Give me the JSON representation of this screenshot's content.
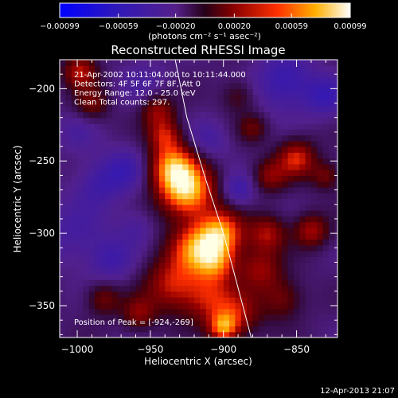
{
  "chart_data": {
    "type": "heatmap",
    "title": "Reconstructed RHESSI Image",
    "xlabel": "Heliocentric X (arcsec)",
    "ylabel": "Heliocentric Y (arcsec)",
    "xlim": [
      -1012,
      -822
    ],
    "ylim": [
      -372,
      -180
    ],
    "x_ticks": [
      -1000,
      -950,
      -900,
      -850
    ],
    "y_ticks": [
      -200,
      -250,
      -300,
      -350
    ],
    "colorbar": {
      "min": -0.00099,
      "max": 0.00099,
      "tick_values": [
        -0.00099,
        -0.00059,
        -0.0002,
        0.0002,
        0.00059,
        0.00099
      ],
      "tick_labels": [
        "-0.00099",
        "-0.00059",
        "-0.00020",
        "0.00020",
        "0.00059",
        "0.00099"
      ],
      "unit_label": "(photons cm⁻² s⁻¹ asec⁻²)"
    },
    "annotations": [
      "21-Apr-2002 10:11:04.000 to 10:11:44.000",
      "Detectors: 4F 5F 6F 7F 8F, Att 0",
      "Energy Range: 12.0 - 25.0 keV",
      "Clean     Total counts: 297."
    ],
    "peak_text": "Position of Peak = [-924,-269]",
    "peak_position": [
      -924,
      -269
    ],
    "limb_curve": [
      [
        -933,
        -180
      ],
      [
        -925,
        -220
      ],
      [
        -913,
        -260
      ],
      [
        -900,
        -300
      ],
      [
        -892,
        -330
      ],
      [
        -881,
        -372
      ]
    ],
    "blobs": [
      {
        "x": -925,
        "y": -270,
        "a": 1.0,
        "s": 13
      },
      {
        "x": -935,
        "y": -253,
        "a": 0.75,
        "s": 11
      },
      {
        "x": -902,
        "y": -300,
        "a": 0.85,
        "s": 11
      },
      {
        "x": -920,
        "y": -310,
        "a": 0.7,
        "s": 12
      },
      {
        "x": -905,
        "y": -320,
        "a": 0.6,
        "s": 10
      },
      {
        "x": -935,
        "y": -335,
        "a": 0.55,
        "s": 13
      },
      {
        "x": -910,
        "y": -345,
        "a": 0.5,
        "s": 12
      },
      {
        "x": -890,
        "y": -355,
        "a": 0.45,
        "s": 11
      },
      {
        "x": -900,
        "y": -365,
        "a": 0.7,
        "s": 7
      },
      {
        "x": -870,
        "y": -300,
        "a": 0.5,
        "s": 9
      },
      {
        "x": -875,
        "y": -325,
        "a": 0.45,
        "s": 10
      },
      {
        "x": -860,
        "y": -345,
        "a": 0.35,
        "s": 10
      },
      {
        "x": -840,
        "y": -298,
        "a": 0.5,
        "s": 8
      },
      {
        "x": -850,
        "y": -248,
        "a": 0.6,
        "s": 9
      },
      {
        "x": -868,
        "y": -260,
        "a": 0.4,
        "s": 8
      },
      {
        "x": -830,
        "y": -260,
        "a": 0.35,
        "s": 7
      },
      {
        "x": -945,
        "y": -215,
        "a": 0.45,
        "s": 8
      },
      {
        "x": -940,
        "y": -232,
        "a": 0.5,
        "s": 8
      },
      {
        "x": -998,
        "y": -188,
        "a": 0.55,
        "s": 8
      },
      {
        "x": -990,
        "y": -210,
        "a": 0.35,
        "s": 8
      },
      {
        "x": -958,
        "y": -355,
        "a": 0.4,
        "s": 8
      },
      {
        "x": -982,
        "y": -345,
        "a": 0.35,
        "s": 8
      },
      {
        "x": -890,
        "y": -205,
        "a": 0.25,
        "s": 8
      },
      {
        "x": -880,
        "y": -227,
        "a": 0.3,
        "s": 7
      },
      {
        "x": -1003,
        "y": -300,
        "a": -0.2,
        "s": 16
      },
      {
        "x": -985,
        "y": -265,
        "a": -0.25,
        "s": 12
      },
      {
        "x": -966,
        "y": -255,
        "a": -0.25,
        "s": 11
      },
      {
        "x": -977,
        "y": -318,
        "a": -0.25,
        "s": 11
      },
      {
        "x": -858,
        "y": -195,
        "a": -0.35,
        "s": 14
      },
      {
        "x": -910,
        "y": -235,
        "a": -0.22,
        "s": 10
      },
      {
        "x": -890,
        "y": -270,
        "a": -0.3,
        "s": 8
      },
      {
        "x": -830,
        "y": -205,
        "a": -0.3,
        "s": 10
      },
      {
        "x": -955,
        "y": -195,
        "a": -0.15,
        "s": 12
      },
      {
        "x": -960,
        "y": -295,
        "a": -0.18,
        "s": 9
      },
      {
        "x": -1000,
        "y": -230,
        "a": -0.15,
        "s": 10
      }
    ]
  },
  "footer": {
    "timestamp": "12-Apr-2013 21:07"
  }
}
